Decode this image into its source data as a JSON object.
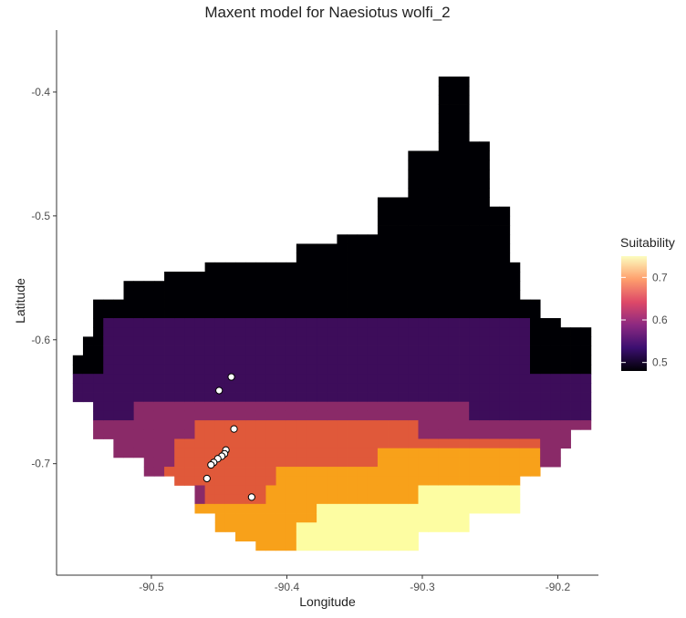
{
  "chart_data": {
    "type": "heatmap",
    "title": "Maxent model for Naesiotus wolfi_2",
    "xlabel": "Longitude",
    "ylabel": "Latitude",
    "xlim": [
      -90.57,
      -90.17
    ],
    "ylim": [
      -0.79,
      -0.35
    ],
    "x_ticks": [
      "-90.5",
      "-90.4",
      "-90.3",
      "-90.2"
    ],
    "x_tick_values": [
      -90.5,
      -90.4,
      -90.3,
      -90.2
    ],
    "y_ticks": [
      "-0.4",
      "-0.5",
      "-0.6",
      "-0.7"
    ],
    "y_tick_values": [
      -0.4,
      -0.5,
      -0.6,
      -0.7
    ],
    "grid": false,
    "legend": {
      "title": "Suitability",
      "position": "right",
      "range": [
        0.48,
        0.75
      ],
      "ticks": [
        "0.7",
        "0.6",
        "0.5"
      ],
      "tick_values": [
        0.7,
        0.6,
        0.5
      ],
      "colors": [
        "#000004",
        "#3b0f70",
        "#8c2981",
        "#de4968",
        "#fe9f6d",
        "#fcfdbf"
      ]
    },
    "raster": {
      "cell_size_deg": 0.0075,
      "bands": [
        {
          "suitability": 0.48,
          "color": "#000004"
        },
        {
          "suitability": 0.53,
          "color": "#3d0d5a"
        },
        {
          "suitability": 0.6,
          "color": "#8a2a68"
        },
        {
          "suitability": 0.66,
          "color": "#e0593a"
        },
        {
          "suitability": 0.71,
          "color": "#f8a11a"
        },
        {
          "suitability": 0.75,
          "color": "#fdfda2"
        }
      ]
    },
    "occurrence_points": [
      {
        "lon": -90.441,
        "lat": -0.63
      },
      {
        "lon": -90.45,
        "lat": -0.641
      },
      {
        "lon": -90.439,
        "lat": -0.672
      },
      {
        "lon": -90.445,
        "lat": -0.689
      },
      {
        "lon": -90.446,
        "lat": -0.692
      },
      {
        "lon": -90.448,
        "lat": -0.694
      },
      {
        "lon": -90.451,
        "lat": -0.696
      },
      {
        "lon": -90.454,
        "lat": -0.699
      },
      {
        "lon": -90.456,
        "lat": -0.701
      },
      {
        "lon": -90.459,
        "lat": -0.712
      },
      {
        "lon": -90.426,
        "lat": -0.727
      }
    ]
  }
}
